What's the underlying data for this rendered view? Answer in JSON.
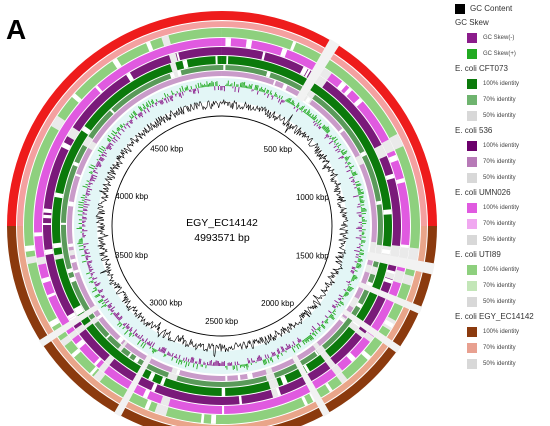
{
  "panel_label": "A",
  "genome": {
    "name": "EGY_EC14142",
    "length_label": "4993571 bp",
    "length_bp": 4993571
  },
  "tick_labels": [
    "500 kbp",
    "1000 kbp",
    "1500 kbp",
    "2000 kbp",
    "2500 kbp",
    "3000 kbp",
    "3500 kbp",
    "4000 kbp",
    "4500 kbp"
  ],
  "tick_positions_kbp": [
    500,
    1000,
    1500,
    2000,
    2500,
    3000,
    3500,
    4000,
    4500
  ],
  "legend": {
    "gc_content": {
      "label": "GC Content",
      "color": "#000000"
    },
    "gc_skew": {
      "title": "GC Skew",
      "items": [
        {
          "label": "GC Skew(-)",
          "color": "#8b1c8b"
        },
        {
          "label": "GC Skew(+)",
          "color": "#22aa22"
        }
      ]
    },
    "genomes": [
      {
        "title": "E. coli CFT073",
        "items": [
          {
            "label": "100% identity",
            "color": "#0b7a0b"
          },
          {
            "label": "70% identity",
            "color": "#6fb46f"
          },
          {
            "label": "50% identity",
            "color": "#d8d8d8"
          }
        ]
      },
      {
        "title": "E. coli 536",
        "items": [
          {
            "label": "100% identity",
            "color": "#6b006b"
          },
          {
            "label": "70% identity",
            "color": "#b77ab7"
          },
          {
            "label": "50% identity",
            "color": "#d8d8d8"
          }
        ]
      },
      {
        "title": "E. coli UMN026",
        "items": [
          {
            "label": "100% identity",
            "color": "#e05ae0"
          },
          {
            "label": "70% identity",
            "color": "#f0a8f0"
          },
          {
            "label": "50% identity",
            "color": "#d8d8d8"
          }
        ]
      },
      {
        "title": "E. coli UTI89",
        "items": [
          {
            "label": "100% identity",
            "color": "#8ed07e"
          },
          {
            "label": "70% identity",
            "color": "#c3e6b8"
          },
          {
            "label": "50% identity",
            "color": "#d8d8d8"
          }
        ]
      },
      {
        "title": "E. coli EGY_EC14142",
        "items": [
          {
            "label": "100% identity",
            "color": "#8b3a0e"
          },
          {
            "label": "70% identity",
            "color": "#e8a090"
          },
          {
            "label": "50% identity",
            "color": "#d8d8d8"
          }
        ]
      }
    ]
  },
  "ring_colors": {
    "outer_red": "#ee1c1c",
    "outer_brown": "#8b3a0e",
    "outer_brown_light": "#e9a58a",
    "uti89": "#8ed07e",
    "umn026": "#e05ae0",
    "e536": "#7a1a7a",
    "cft073": "#0b7a0b",
    "gap": "#eaeaea"
  }
}
